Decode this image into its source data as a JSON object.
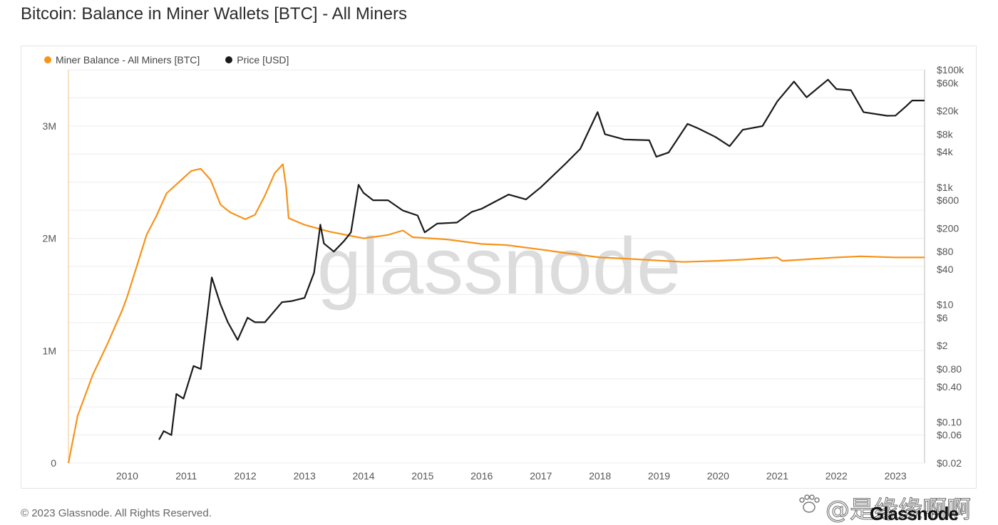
{
  "page": {
    "title": "Bitcoin: Balance in Miner Wallets [BTC] - All Miners",
    "copyright": "© 2023 Glassnode. All Rights Reserved.",
    "watermark": "glassnode",
    "corner_watermark": "@是缘缘啊啊",
    "corner_logo": "Glassnode"
  },
  "colors": {
    "miner_balance": "#f7931a",
    "price": "#1a1a1a",
    "grid": "#ececec",
    "axis_text": "#555555",
    "watermark": "#dcdcdc"
  },
  "legend": [
    {
      "label": "Miner Balance - All Miners [BTC]",
      "color": "#f7931a"
    },
    {
      "label": "Price [USD]",
      "color": "#1a1a1a"
    }
  ],
  "chart_data": {
    "type": "line",
    "title": "Bitcoin: Balance in Miner Wallets [BTC] - All Miners",
    "legend_position": "top-left",
    "grid": true,
    "x_axis": {
      "type": "time",
      "range": [
        "2009-01-03",
        "2023-06-30"
      ],
      "tick_labels": [
        "2010",
        "2011",
        "2012",
        "2013",
        "2014",
        "2015",
        "2016",
        "2017",
        "2018",
        "2019",
        "2020",
        "2021",
        "2022",
        "2023"
      ]
    },
    "y_axis_left": {
      "label": "",
      "range": [
        0,
        3500000
      ],
      "ticks": [
        {
          "value": 0,
          "label": "0"
        },
        {
          "value": 1000000,
          "label": "1M"
        },
        {
          "value": 2000000,
          "label": "2M"
        },
        {
          "value": 3000000,
          "label": "3M"
        }
      ]
    },
    "y_axis_right": {
      "label": "",
      "scale": "log",
      "range": [
        0.02,
        100000
      ],
      "ticks": [
        {
          "value": 100000,
          "label": "$100k"
        },
        {
          "value": 60000,
          "label": "$60k"
        },
        {
          "value": 20000,
          "label": "$20k"
        },
        {
          "value": 8000,
          "label": "$8k"
        },
        {
          "value": 4000,
          "label": "$4k"
        },
        {
          "value": 1000,
          "label": "$1k"
        },
        {
          "value": 600,
          "label": "$600"
        },
        {
          "value": 200,
          "label": "$200"
        },
        {
          "value": 80,
          "label": "$80"
        },
        {
          "value": 40,
          "label": "$40"
        },
        {
          "value": 10,
          "label": "$10"
        },
        {
          "value": 6,
          "label": "$6"
        },
        {
          "value": 2,
          "label": "$2"
        },
        {
          "value": 0.8,
          "label": "$0.80"
        },
        {
          "value": 0.4,
          "label": "$0.40"
        },
        {
          "value": 0.1,
          "label": "$0.10"
        },
        {
          "value": 0.06,
          "label": "$0.06"
        },
        {
          "value": 0.02,
          "label": "$0.02"
        }
      ]
    },
    "series": [
      {
        "name": "Miner Balance - All Miners [BTC]",
        "axis": "left",
        "points": [
          [
            "2009-01-03",
            0
          ],
          [
            "2009-03-01",
            420000
          ],
          [
            "2009-06-01",
            780000
          ],
          [
            "2009-09-01",
            1060000
          ],
          [
            "2009-12-01",
            1360000
          ],
          [
            "2010-01-01",
            1480000
          ],
          [
            "2010-03-01",
            1750000
          ],
          [
            "2010-05-01",
            2030000
          ],
          [
            "2010-07-01",
            2200000
          ],
          [
            "2010-09-01",
            2400000
          ],
          [
            "2010-11-01",
            2480000
          ],
          [
            "2011-02-01",
            2600000
          ],
          [
            "2011-04-01",
            2620000
          ],
          [
            "2011-06-01",
            2520000
          ],
          [
            "2011-08-01",
            2300000
          ],
          [
            "2011-10-01",
            2230000
          ],
          [
            "2012-01-01",
            2170000
          ],
          [
            "2012-03-01",
            2210000
          ],
          [
            "2012-05-01",
            2380000
          ],
          [
            "2012-07-01",
            2580000
          ],
          [
            "2012-08-20",
            2660000
          ],
          [
            "2012-09-10",
            2450000
          ],
          [
            "2012-09-25",
            2180000
          ],
          [
            "2013-01-01",
            2120000
          ],
          [
            "2013-06-01",
            2060000
          ],
          [
            "2014-01-01",
            2000000
          ],
          [
            "2014-06-01",
            2030000
          ],
          [
            "2014-09-01",
            2070000
          ],
          [
            "2014-11-01",
            2010000
          ],
          [
            "2015-06-01",
            1990000
          ],
          [
            "2016-01-01",
            1950000
          ],
          [
            "2016-06-01",
            1940000
          ],
          [
            "2017-01-01",
            1900000
          ],
          [
            "2017-06-01",
            1870000
          ],
          [
            "2018-01-01",
            1830000
          ],
          [
            "2018-06-01",
            1820000
          ],
          [
            "2019-06-01",
            1790000
          ],
          [
            "2020-01-01",
            1800000
          ],
          [
            "2020-06-01",
            1810000
          ],
          [
            "2021-01-01",
            1830000
          ],
          [
            "2021-02-01",
            1800000
          ],
          [
            "2021-06-01",
            1810000
          ],
          [
            "2022-01-01",
            1830000
          ],
          [
            "2022-06-01",
            1840000
          ],
          [
            "2023-01-01",
            1830000
          ],
          [
            "2023-06-30",
            1830000
          ]
        ]
      },
      {
        "name": "Price [USD]",
        "axis": "right",
        "points": [
          [
            "2010-07-17",
            0.05
          ],
          [
            "2010-08-15",
            0.07
          ],
          [
            "2010-10-01",
            0.06
          ],
          [
            "2010-11-01",
            0.3
          ],
          [
            "2010-12-15",
            0.25
          ],
          [
            "2011-02-15",
            0.9
          ],
          [
            "2011-04-01",
            0.8
          ],
          [
            "2011-06-08",
            29
          ],
          [
            "2011-08-01",
            10
          ],
          [
            "2011-09-15",
            5
          ],
          [
            "2011-11-15",
            2.5
          ],
          [
            "2012-01-15",
            6
          ],
          [
            "2012-03-01",
            5
          ],
          [
            "2012-05-01",
            5
          ],
          [
            "2012-08-15",
            11
          ],
          [
            "2012-10-15",
            11.5
          ],
          [
            "2013-01-01",
            13
          ],
          [
            "2013-03-01",
            35
          ],
          [
            "2013-04-09",
            230
          ],
          [
            "2013-05-01",
            110
          ],
          [
            "2013-07-01",
            80
          ],
          [
            "2013-09-01",
            120
          ],
          [
            "2013-10-15",
            170
          ],
          [
            "2013-12-01",
            1100
          ],
          [
            "2014-01-01",
            800
          ],
          [
            "2014-03-01",
            600
          ],
          [
            "2014-06-01",
            600
          ],
          [
            "2014-09-01",
            400
          ],
          [
            "2014-12-01",
            330
          ],
          [
            "2015-01-14",
            170
          ],
          [
            "2015-04-01",
            240
          ],
          [
            "2015-08-01",
            250
          ],
          [
            "2015-11-01",
            380
          ],
          [
            "2016-01-01",
            430
          ],
          [
            "2016-06-15",
            750
          ],
          [
            "2016-10-01",
            620
          ],
          [
            "2017-01-01",
            1000
          ],
          [
            "2017-06-01",
            2500
          ],
          [
            "2017-09-01",
            4500
          ],
          [
            "2017-12-17",
            19000
          ],
          [
            "2018-02-01",
            8000
          ],
          [
            "2018-06-01",
            6500
          ],
          [
            "2018-11-01",
            6300
          ],
          [
            "2018-12-15",
            3300
          ],
          [
            "2019-03-01",
            3900
          ],
          [
            "2019-06-26",
            12000
          ],
          [
            "2019-09-01",
            10000
          ],
          [
            "2019-12-15",
            7200
          ],
          [
            "2020-03-12",
            5000
          ],
          [
            "2020-06-01",
            9500
          ],
          [
            "2020-10-01",
            11000
          ],
          [
            "2021-01-01",
            29000
          ],
          [
            "2021-04-14",
            63000
          ],
          [
            "2021-07-01",
            34000
          ],
          [
            "2021-11-10",
            68000
          ],
          [
            "2022-01-01",
            47000
          ],
          [
            "2022-04-01",
            45000
          ],
          [
            "2022-06-18",
            19000
          ],
          [
            "2022-11-10",
            16500
          ],
          [
            "2023-01-01",
            16600
          ],
          [
            "2023-03-01",
            23000
          ],
          [
            "2023-04-15",
            30000
          ],
          [
            "2023-06-30",
            30000
          ]
        ]
      }
    ]
  }
}
